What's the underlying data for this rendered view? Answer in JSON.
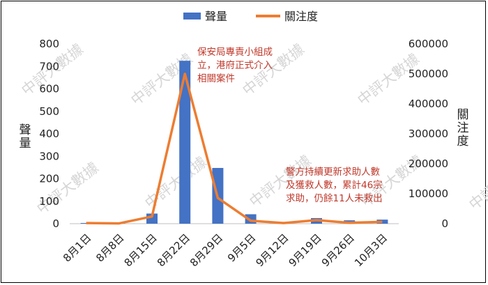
{
  "chart_data": {
    "type": "bar+line",
    "categories": [
      "8月1日",
      "8月8日",
      "8月15日",
      "8月22日",
      "8月29日",
      "9月5日",
      "9月12日",
      "9月19日",
      "9月26日",
      "10月3日"
    ],
    "series": [
      {
        "name": "聲量",
        "type": "bar",
        "axis": "left",
        "color": "#4472C4",
        "values": [
          3,
          2,
          45,
          725,
          248,
          42,
          8,
          25,
          15,
          18
        ]
      },
      {
        "name": "關注度",
        "type": "line",
        "axis": "right",
        "color": "#ED7D31",
        "values": [
          2000,
          1000,
          24000,
          500000,
          86000,
          10000,
          2000,
          12000,
          3000,
          6000
        ]
      }
    ],
    "ylabel_left": "聲量",
    "ylabel_right": "關注度",
    "ylim_left": [
      0,
      800
    ],
    "ylim_right": [
      0,
      600000
    ],
    "yticks_left": [
      "0",
      "100",
      "200",
      "300",
      "400",
      "500",
      "600",
      "700",
      "800"
    ],
    "yticks_right": [
      "0",
      "100000",
      "200000",
      "300000",
      "400000",
      "500000",
      "600000"
    ],
    "legend_position": "top",
    "grid": false,
    "annotations": [
      {
        "category_index": 3,
        "lines": [
          "保安局專責小組成",
          "立，港府正式介入",
          "相關案件"
        ]
      },
      {
        "category_index": 8,
        "lines": [
          "警方持續更新求助人數",
          "及獲救人數，累計46宗",
          "求助，仍餘11人未救出"
        ]
      }
    ],
    "watermark": "中評大數據"
  }
}
